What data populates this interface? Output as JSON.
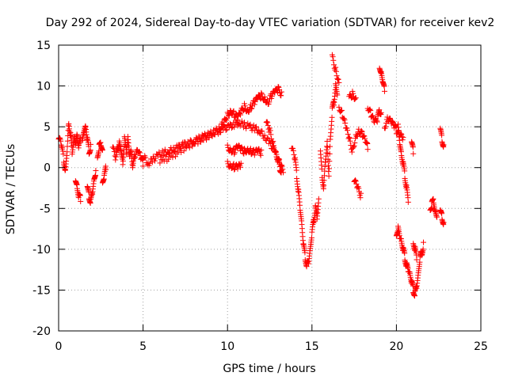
{
  "chart_data": {
    "type": "scatter",
    "title": "Day 292 of 2024, Sidereal Day-to-day VTEC variation (SDTVAR) for receiver kev2",
    "xlabel": "GPS time / hours",
    "ylabel": "SDTVAR / TECUs",
    "xlim": [
      0,
      25
    ],
    "ylim": [
      -20,
      15
    ],
    "xticks": [
      0,
      5,
      10,
      15,
      20,
      25
    ],
    "yticks": [
      -20,
      -15,
      -10,
      -5,
      0,
      5,
      10,
      15
    ],
    "grid": true,
    "marker": "plus",
    "color": "#ff0000",
    "series": [
      {
        "name": "SDTVAR",
        "segments": [
          [
            [
              0.0,
              3.5
            ],
            [
              0.15,
              3.0
            ],
            [
              0.3,
              1.0
            ],
            [
              0.4,
              -0.5
            ],
            [
              0.5,
              2.0
            ],
            [
              0.6,
              5.5
            ],
            [
              0.7,
              4.0
            ],
            [
              0.8,
              2.0
            ],
            [
              0.9,
              3.5
            ],
            [
              1.0,
              3.0
            ],
            [
              1.1,
              4.0
            ],
            [
              1.2,
              2.5
            ],
            [
              1.3,
              3.5
            ]
          ],
          [
            [
              1.0,
              -1.5
            ],
            [
              1.1,
              -2.5
            ],
            [
              1.2,
              -3.5
            ],
            [
              1.3,
              -3.8
            ]
          ],
          [
            [
              1.4,
              3.0
            ],
            [
              1.5,
              4.5
            ],
            [
              1.6,
              5.0
            ],
            [
              1.7,
              3.5
            ],
            [
              1.8,
              2.0
            ],
            [
              1.9,
              2.5
            ]
          ],
          [
            [
              1.7,
              -2.5
            ],
            [
              1.8,
              -3.5
            ],
            [
              1.9,
              -4.2
            ],
            [
              2.0,
              -3.0
            ],
            [
              2.1,
              -1.5
            ],
            [
              2.2,
              -0.5
            ]
          ],
          [
            [
              2.3,
              1.5
            ],
            [
              2.4,
              2.5
            ],
            [
              2.5,
              3.0
            ],
            [
              2.6,
              2.0
            ]
          ],
          [
            [
              2.6,
              -2.0
            ],
            [
              2.7,
              -1.0
            ],
            [
              2.8,
              0.0
            ]
          ],
          [
            [
              3.2,
              2.5
            ],
            [
              3.4,
              1.0
            ],
            [
              3.5,
              2.5
            ],
            [
              3.6,
              3.0
            ],
            [
              3.7,
              2.0
            ],
            [
              3.8,
              0.5
            ],
            [
              3.9,
              3.5
            ],
            [
              4.0,
              2.0
            ],
            [
              4.1,
              3.5
            ],
            [
              4.2,
              1.5
            ],
            [
              4.3,
              2.0
            ],
            [
              4.4,
              0.0
            ],
            [
              4.5,
              1.5
            ],
            [
              4.7,
              2.0
            ],
            [
              4.9,
              1.0
            ],
            [
              5.0,
              0.5
            ]
          ],
          [
            [
              5.0,
              1.5
            ],
            [
              5.3,
              0.5
            ],
            [
              5.6,
              1.0
            ],
            [
              5.9,
              1.5
            ],
            [
              6.2,
              1.8
            ],
            [
              6.5,
              2.0
            ],
            [
              6.8,
              2.2
            ],
            [
              7.1,
              2.5
            ],
            [
              7.4,
              2.8
            ],
            [
              7.7,
              3.0
            ],
            [
              8.0,
              3.2
            ],
            [
              8.3,
              3.5
            ],
            [
              8.6,
              3.8
            ],
            [
              8.9,
              4.0
            ],
            [
              9.2,
              4.3
            ],
            [
              9.5,
              4.5
            ],
            [
              9.8,
              4.8
            ],
            [
              10.1,
              5.0
            ],
            [
              10.4,
              5.3
            ],
            [
              10.7,
              5.5
            ],
            [
              11.0,
              5.2
            ],
            [
              11.3,
              5.0
            ],
            [
              11.6,
              4.8
            ],
            [
              11.9,
              4.5
            ],
            [
              12.2,
              3.8
            ],
            [
              12.5,
              3.0
            ],
            [
              12.8,
              2.0
            ],
            [
              13.0,
              0.8
            ],
            [
              13.1,
              0.0
            ],
            [
              13.2,
              -0.6
            ]
          ],
          [
            [
              6.0,
              0.8
            ],
            [
              6.5,
              1.2
            ],
            [
              7.0,
              1.8
            ],
            [
              7.5,
              2.5
            ],
            [
              8.0,
              3.0
            ],
            [
              8.5,
              3.5
            ],
            [
              9.0,
              4.0
            ],
            [
              9.5,
              4.8
            ],
            [
              9.8,
              5.5
            ],
            [
              10.0,
              6.5
            ],
            [
              10.2,
              7.0
            ],
            [
              10.4,
              6.5
            ],
            [
              10.6,
              6.0
            ],
            [
              10.8,
              6.8
            ],
            [
              11.0,
              7.5
            ],
            [
              11.2,
              7.0
            ],
            [
              11.4,
              7.5
            ],
            [
              11.6,
              8.0
            ],
            [
              11.8,
              8.5
            ],
            [
              12.0,
              8.8
            ],
            [
              12.2,
              8.5
            ],
            [
              12.4,
              8.0
            ],
            [
              12.6,
              8.8
            ],
            [
              12.8,
              9.2
            ],
            [
              13.0,
              9.6
            ],
            [
              13.2,
              9.0
            ]
          ],
          [
            [
              12.3,
              5.5
            ],
            [
              12.5,
              4.5
            ],
            [
              12.7,
              3.0
            ],
            [
              12.9,
              1.5
            ],
            [
              13.1,
              0.5
            ],
            [
              13.3,
              -0.5
            ]
          ],
          [
            [
              10.0,
              2.5
            ],
            [
              10.2,
              2.2
            ],
            [
              10.4,
              2.0
            ],
            [
              10.6,
              2.5
            ],
            [
              10.8,
              2.2
            ],
            [
              11.0,
              2.0
            ],
            [
              11.2,
              2.3
            ],
            [
              11.4,
              2.0
            ],
            [
              11.6,
              1.8
            ],
            [
              11.8,
              2.0
            ],
            [
              12.0,
              1.8
            ]
          ],
          [
            [
              10.0,
              0.5
            ],
            [
              10.2,
              0.3
            ],
            [
              10.4,
              0.1
            ],
            [
              10.6,
              0.0
            ],
            [
              10.8,
              0.3
            ]
          ],
          [
            [
              13.8,
              2.5
            ],
            [
              14.0,
              1.0
            ],
            [
              14.1,
              -1.0
            ],
            [
              14.2,
              -3.0
            ],
            [
              14.3,
              -5.0
            ],
            [
              14.4,
              -7.0
            ],
            [
              14.5,
              -9.5
            ],
            [
              14.6,
              -11.0
            ],
            [
              14.7,
              -12.0
            ],
            [
              14.8,
              -11.5
            ],
            [
              14.9,
              -10.0
            ],
            [
              15.0,
              -8.0
            ],
            [
              15.1,
              -6.5
            ],
            [
              15.2,
              -5.0
            ],
            [
              15.3,
              -6.0
            ],
            [
              15.4,
              -4.0
            ]
          ],
          [
            [
              15.5,
              2.0
            ],
            [
              15.6,
              -1.0
            ],
            [
              15.7,
              -2.5
            ],
            [
              15.8,
              1.0
            ],
            [
              15.9,
              3.0
            ],
            [
              16.0,
              -1.0
            ],
            [
              16.1,
              4.0
            ],
            [
              16.2,
              7.0
            ],
            [
              16.3,
              8.0
            ],
            [
              16.4,
              10.0
            ],
            [
              16.5,
              9.0
            ]
          ],
          [
            [
              16.2,
              13.5
            ],
            [
              16.4,
              12.0
            ],
            [
              16.6,
              10.5
            ]
          ],
          [
            [
              16.6,
              7.5
            ],
            [
              16.8,
              6.5
            ],
            [
              17.0,
              5.0
            ],
            [
              17.2,
              3.5
            ],
            [
              17.4,
              2.0
            ],
            [
              17.6,
              4.0
            ],
            [
              17.8,
              4.5
            ],
            [
              18.0,
              4.0
            ],
            [
              18.2,
              3.0
            ],
            [
              18.3,
              2.5
            ]
          ],
          [
            [
              17.5,
              -1.5
            ],
            [
              17.7,
              -2.5
            ],
            [
              17.9,
              -3.5
            ]
          ],
          [
            [
              17.2,
              8.5
            ],
            [
              17.4,
              9.0
            ],
            [
              17.6,
              8.5
            ]
          ],
          [
            [
              18.3,
              7.5
            ],
            [
              18.5,
              6.5
            ],
            [
              18.7,
              5.5
            ],
            [
              18.9,
              6.0
            ],
            [
              19.0,
              7.0
            ],
            [
              19.1,
              6.5
            ]
          ],
          [
            [
              19.0,
              12.5
            ],
            [
              19.1,
              11.5
            ],
            [
              19.2,
              10.5
            ],
            [
              19.3,
              9.5
            ]
          ],
          [
            [
              19.3,
              5.0
            ],
            [
              19.5,
              6.0
            ],
            [
              19.7,
              5.5
            ],
            [
              19.9,
              5.0
            ],
            [
              20.0,
              4.5
            ],
            [
              20.2,
              4.0
            ],
            [
              20.4,
              3.5
            ]
          ],
          [
            [
              20.1,
              5.0
            ],
            [
              20.2,
              3.0
            ],
            [
              20.3,
              1.5
            ],
            [
              20.4,
              0.5
            ],
            [
              20.5,
              -1.0
            ],
            [
              20.6,
              -2.5
            ],
            [
              20.7,
              -4.0
            ]
          ],
          [
            [
              20.9,
              3.0
            ],
            [
              21.0,
              2.0
            ]
          ],
          [
            [
              20.0,
              -8.0
            ],
            [
              20.1,
              -7.5
            ],
            [
              20.2,
              -8.5
            ],
            [
              20.3,
              -9.0
            ],
            [
              20.4,
              -10.0
            ],
            [
              20.5,
              -11.0
            ],
            [
              20.6,
              -12.0
            ],
            [
              20.7,
              -12.5
            ],
            [
              20.8,
              -13.0
            ],
            [
              20.9,
              -14.0
            ],
            [
              21.0,
              -15.0
            ],
            [
              21.1,
              -15.5
            ],
            [
              21.2,
              -14.5
            ],
            [
              21.3,
              -13.0
            ],
            [
              21.4,
              -11.0
            ],
            [
              21.5,
              -10.5
            ],
            [
              21.6,
              -9.5
            ]
          ],
          [
            [
              21.0,
              -9.0
            ],
            [
              21.1,
              -10.0
            ],
            [
              21.2,
              -11.0
            ]
          ],
          [
            [
              22.0,
              -5.0
            ],
            [
              22.1,
              -4.5
            ],
            [
              22.2,
              -4.0
            ],
            [
              22.3,
              -5.5
            ],
            [
              22.4,
              -6.0
            ]
          ],
          [
            [
              22.6,
              -5.5
            ],
            [
              22.7,
              -6.0
            ],
            [
              22.8,
              -7.0
            ]
          ],
          [
            [
              22.6,
              4.5
            ],
            [
              22.7,
              3.5
            ],
            [
              22.8,
              2.5
            ]
          ]
        ]
      }
    ]
  }
}
